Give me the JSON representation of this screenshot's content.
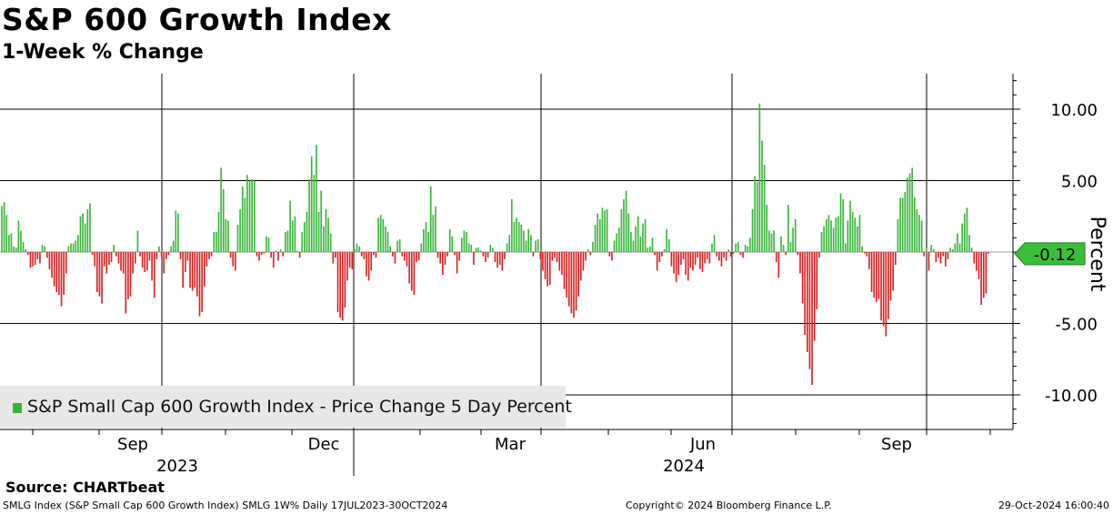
{
  "header": {
    "title": "S&P 600 Growth Index",
    "subtitle": "1-Week % Change"
  },
  "source": "Source: CHARTbeat",
  "footer": {
    "left": "SMLG Index (S&P Small Cap 600 Growth Index) SMLG 1W%  Daily 17JUL2023-30OCT2024",
    "center": "Copyright© 2024 Bloomberg Finance L.P.",
    "right": "29-Oct-2024 16:00:40"
  },
  "colors": {
    "positive": "#35b535",
    "negative": "#dd1c1c",
    "last_value_badge": "#3bbf3b",
    "grid": "#000000"
  },
  "chart_data": {
    "type": "bar",
    "x_range": [
      "2023-07-17",
      "2024-10-30"
    ],
    "ylabel": "Percent",
    "ylim": [
      -12.5,
      12.5
    ],
    "yticks": [
      10,
      5,
      -5,
      -10
    ],
    "ytick_labels": [
      "10.00",
      "5.00",
      "-5.00",
      "-10.00"
    ],
    "month_labels": [
      "Sep",
      "Dec",
      "Mar",
      "Jun",
      "Sep"
    ],
    "year_labels": [
      "2023",
      "2024"
    ],
    "legend": "S&P Small Cap 600 Growth Index - Price Change 5 Day Percent",
    "legend_position": "bottom-left",
    "last_value": -0.12,
    "last_value_label": "-0.12",
    "grid": true,
    "values": [
      3.2,
      3.5,
      2.6,
      1.2,
      1.3,
      0.4,
      0.3,
      2.2,
      1.5,
      0.7,
      0.2,
      -0.2,
      -1.1,
      -1.0,
      -0.9,
      -0.5,
      -0.8,
      0.5,
      0.4,
      -0.4,
      -1.2,
      -1.8,
      -2.4,
      -2.8,
      -3.0,
      -3.8,
      -3.0,
      -1.5,
      0.4,
      0.6,
      0.6,
      0.8,
      1.2,
      2.5,
      2.7,
      2.0,
      3.0,
      3.4,
      -0.2,
      -1.0,
      -2.8,
      -3.1,
      -3.6,
      -1.0,
      -1.5,
      -0.9,
      -0.7,
      0.5,
      -0.3,
      -0.8,
      -1.3,
      -1.5,
      -4.3,
      -3.3,
      -3.1,
      -1.5,
      -0.8,
      1.5,
      -0.3,
      -1.1,
      -1.4,
      -1.3,
      -0.6,
      -2.0,
      -3.2,
      -0.5,
      0.4,
      -0.3,
      -1.5,
      -0.5,
      -0.2,
      0.4,
      0.8,
      2.9,
      2.7,
      -0.5,
      -2.5,
      -1.4,
      -0.6,
      -2.5,
      -2.7,
      -2.5,
      -3.1,
      -4.5,
      -4.2,
      -2.4,
      -1.0,
      -0.5,
      -0.3,
      1.4,
      1.4,
      2.8,
      5.9,
      4.4,
      2.3,
      2.2,
      -0.4,
      -1.0,
      -1.3,
      1.9,
      3.0,
      4.6,
      3.8,
      5.4,
      5.0,
      5.1,
      5.0,
      -0.3,
      -0.6,
      -0.2,
      -0.1,
      1.1,
      1.0,
      -0.4,
      -1.1,
      0.1,
      -0.6,
      0.2,
      -0.3,
      1.4,
      1.5,
      3.6,
      2.2,
      2.5,
      0.1,
      -0.4,
      1.4,
      2.1,
      2.8,
      5.1,
      6.7,
      5.4,
      7.5,
      2.8,
      4.3,
      1.8,
      3.0,
      2.4,
      1.3,
      -0.8,
      -0.4,
      -4.2,
      -4.6,
      -4.8,
      -3.9,
      -2.0,
      -1.1,
      -1.2,
      0.2,
      0.6,
      0.4,
      -0.3,
      -0.5,
      -1.7,
      -2.0,
      -1.3,
      -0.2,
      -0.4,
      2.4,
      2.6,
      2.3,
      1.8,
      1.4,
      0.4,
      -0.3,
      -0.8,
      0.8,
      0.9,
      -0.3,
      -0.6,
      -1.0,
      -2.2,
      -2.7,
      -3.0,
      -0.7,
      -0.6,
      0.6,
      1.6,
      2.1,
      1.4,
      4.6,
      2.6,
      3.2,
      -0.4,
      -0.8,
      -1.6,
      -0.9,
      -0.3,
      1.6,
      1.1,
      -0.2,
      -1.5,
      -0.6,
      1.0,
      1.5,
      1.4,
      0.6,
      0.5,
      -0.9,
      0.3,
      0.3,
      0.1,
      -0.3,
      -0.7,
      -0.4,
      0.5,
      0.3,
      -0.7,
      -1.1,
      -0.9,
      -1.3,
      -0.5,
      0.6,
      1.2,
      3.7,
      2.1,
      2.4,
      2.1,
      1.9,
      1.5,
      0.8,
      1.6,
      1.2,
      -0.3,
      0.8,
      0.9,
      -0.5,
      -1.3,
      -1.9,
      -2.4,
      -2.3,
      -0.6,
      -0.4,
      -0.7,
      -1.3,
      -1.6,
      -2.6,
      -3.2,
      -3.8,
      -4.3,
      -4.6,
      -4.1,
      -3.1,
      -2.0,
      -1.3,
      -0.6,
      0.2,
      -0.2,
      0.7,
      1.9,
      2.7,
      2.3,
      3.1,
      2.9,
      3.0,
      -0.3,
      -0.6,
      0.8,
      1.3,
      1.7,
      3.0,
      3.7,
      4.3,
      2.7,
      1.4,
      0.8,
      1.8,
      2.5,
      1.1,
      2.0,
      2.3,
      0.3,
      0.4,
      1.0,
      -0.2,
      -1.3,
      -0.7,
      -0.3,
      0.2,
      1.6,
      0.9,
      -1.0,
      -1.5,
      -2.1,
      -1.6,
      -0.9,
      -0.5,
      -1.6,
      -2.0,
      -1.1,
      -1.3,
      -0.9,
      -0.4,
      -1.2,
      -1.4,
      -0.8,
      -0.5,
      -0.8,
      0.6,
      1.2,
      -0.3,
      -0.6,
      -1.0,
      -0.4,
      -0.6,
      0.2,
      -0.3,
      -0.1,
      0.6,
      0.7,
      -0.2,
      -0.4,
      0.5,
      0.4,
      1.0,
      3.0,
      5.3,
      4.9,
      10.4,
      7.8,
      6.1,
      3.3,
      1.5,
      1.3,
      1.5,
      -0.7,
      -1.8,
      1.1,
      0.5,
      -0.2,
      3.3,
      0.7,
      1.7,
      2.3,
      -0.2,
      -1.5,
      -3.6,
      -5.8,
      -7.0,
      -8.2,
      -9.3,
      -6.2,
      -4.0,
      -0.4,
      1.4,
      1.8,
      2.3,
      2.6,
      2.2,
      1.7,
      2.4,
      2.5,
      4.1,
      3.7,
      0.6,
      2.2,
      3.6,
      2.8,
      2.4,
      1.8,
      2.6,
      0.4,
      -0.1,
      -0.3,
      -1.2,
      -2.8,
      -3.2,
      -3.5,
      -3.3,
      -4.8,
      -5.2,
      -5.9,
      -4.7,
      -3.4,
      -2.7,
      -0.9,
      2.3,
      3.8,
      3.8,
      4.2,
      5.2,
      5.5,
      5.9,
      3.8,
      3.0,
      2.6,
      2.2,
      -0.3,
      0.3,
      -1.3,
      0.5,
      0.2,
      -0.7,
      -0.4,
      -0.8,
      -0.3,
      -1.0,
      -0.5,
      0.3,
      0.2,
      0.6,
      1.3,
      0.6,
      2.0,
      2.7,
      3.1,
      1.2,
      0.3,
      -0.8,
      -1.3,
      -1.9,
      -3.7,
      -3.2,
      -2.9,
      -0.12
    ]
  }
}
